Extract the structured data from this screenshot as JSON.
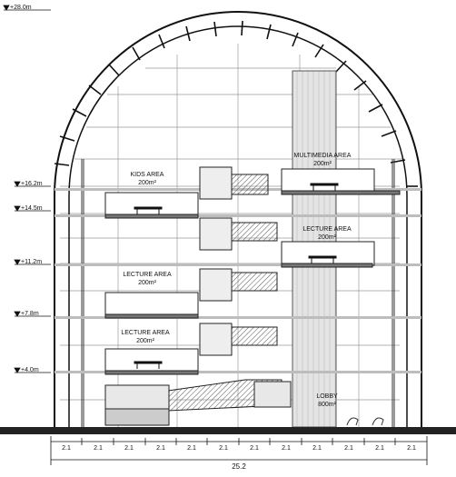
{
  "levels": [
    {
      "id": "l28",
      "label": "+28.0m"
    },
    {
      "id": "l162",
      "label": "+16.2m"
    },
    {
      "id": "l145",
      "label": "+14.5m"
    },
    {
      "id": "l112",
      "label": "+11.2m"
    },
    {
      "id": "l78",
      "label": "+7.8m"
    },
    {
      "id": "l40",
      "label": "+4.0m"
    }
  ],
  "rooms": [
    {
      "id": "kids",
      "name": "KIDS AREA",
      "area": "200m²"
    },
    {
      "id": "multimedia",
      "name": "MULTIMEDIA AREA",
      "area": "200m²"
    },
    {
      "id": "lecture_right",
      "name": "LECTURE AREA",
      "area": "200m²"
    },
    {
      "id": "lecture_mid",
      "name": "LECTURE AREA",
      "area": "200m²"
    },
    {
      "id": "lecture_low",
      "name": "LECTURE AREA",
      "area": "200m²"
    },
    {
      "id": "lobby",
      "name": "LOBBY",
      "area": "800m²"
    }
  ],
  "dimensions": {
    "bays": [
      "2.1",
      "2.1",
      "2.1",
      "2.1",
      "2.1",
      "2.1",
      "2.1",
      "2.1",
      "2.1",
      "2.1",
      "2.1",
      "2.1"
    ],
    "total": "25.2"
  }
}
